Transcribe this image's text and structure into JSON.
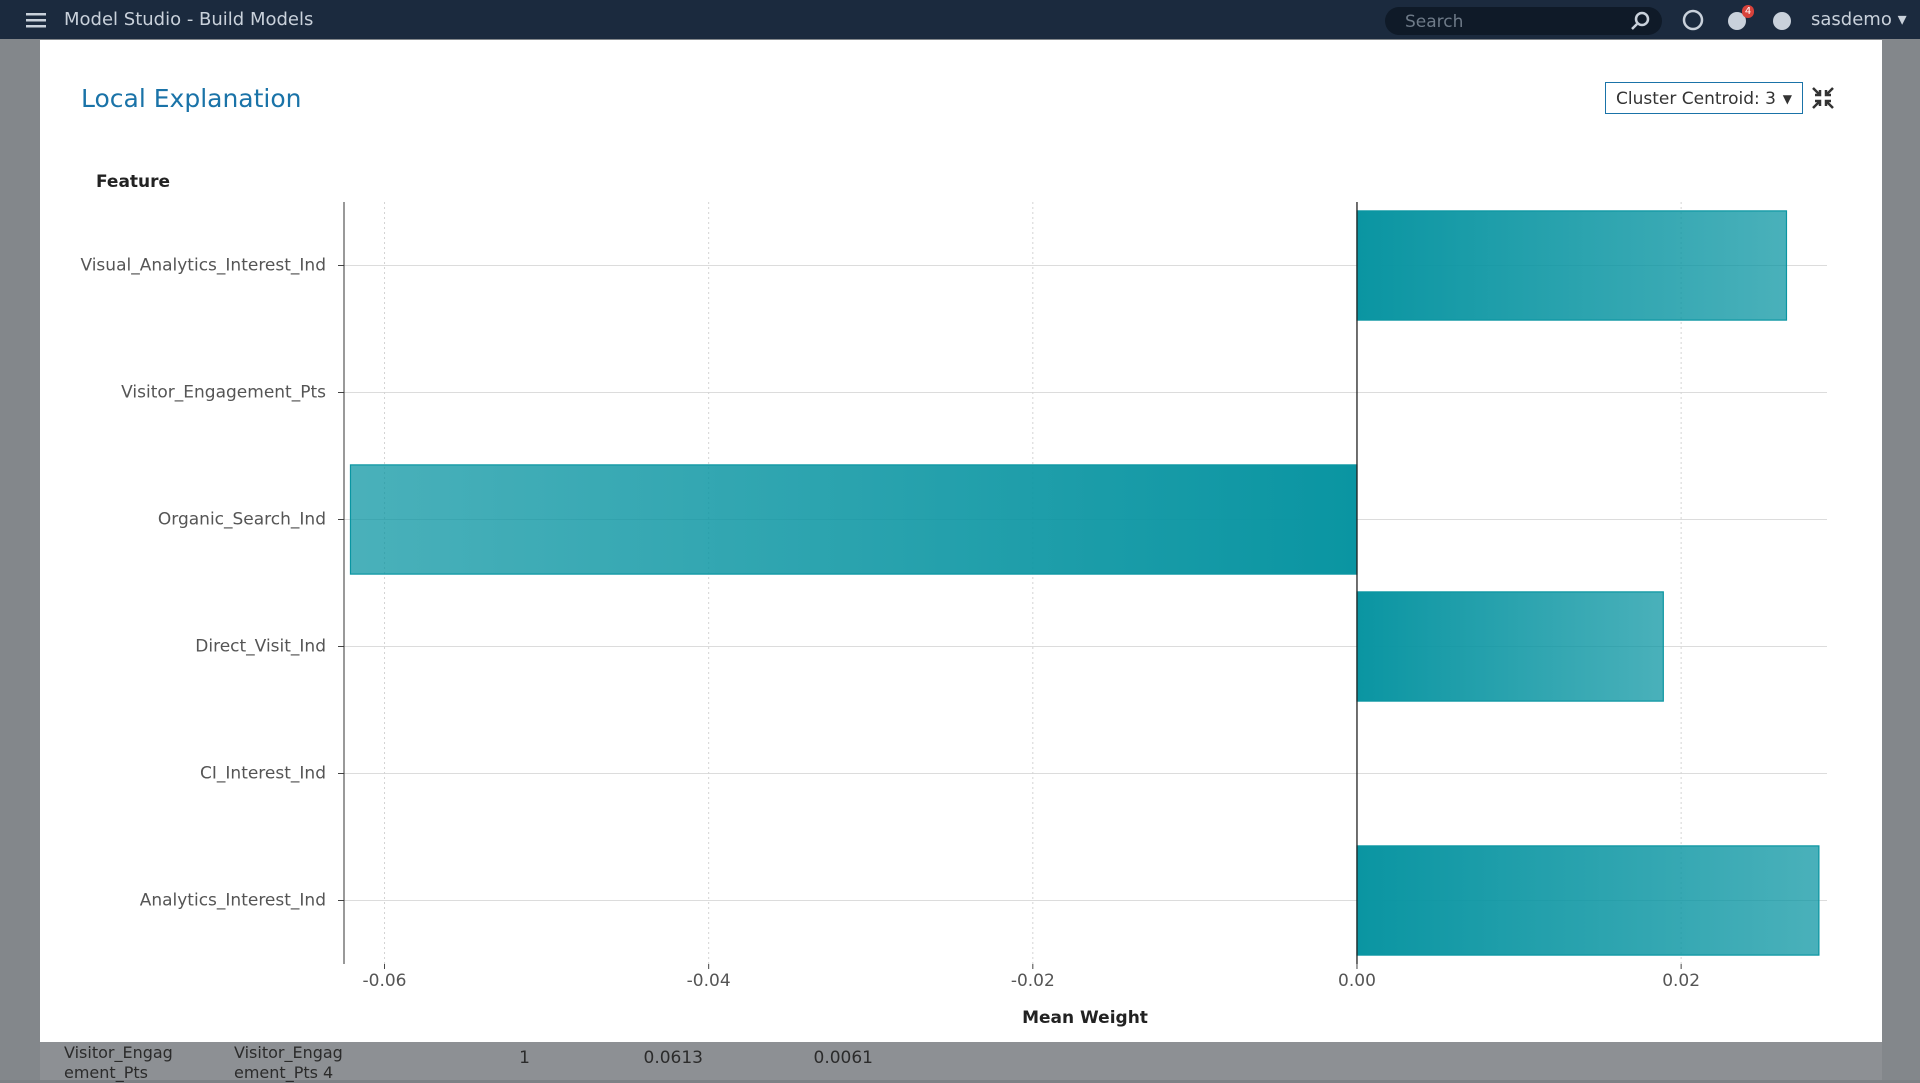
{
  "header": {
    "app_title": "Model Studio - Build Models",
    "search_placeholder": "Search",
    "notification_count": "4",
    "user": "sasdemo"
  },
  "dialog": {
    "title": "Local Explanation",
    "dropdown": "Cluster Centroid: 3"
  },
  "background": {
    "table": {
      "rows": [
        [
          "Visitor_Engagement_Pts",
          "Visitor_Engagement_Pts 4",
          "1",
          "0.0613",
          "0.0061"
        ]
      ]
    }
  },
  "chart_data": {
    "type": "hbar",
    "y_label": "Feature",
    "x_label": "Mean Weight",
    "categories": [
      "Visual_Analytics_Interest_Ind",
      "Visitor_Engagement_Pts",
      "Organic_Search_Ind",
      "Direct_Visit_Ind",
      "CI_Interest_Ind",
      "Analytics_Interest_Ind"
    ],
    "values": [
      0.0265,
      0,
      -0.0621,
      0.0189,
      0,
      0.0285
    ],
    "color": "#0a95a2",
    "xlim": [
      -0.0625,
      0.029
    ],
    "xticks": [
      -0.06,
      -0.04,
      -0.02,
      {
        "value": 0,
        "label": "0.00"
      },
      0.02
    ],
    "grid": true
  }
}
